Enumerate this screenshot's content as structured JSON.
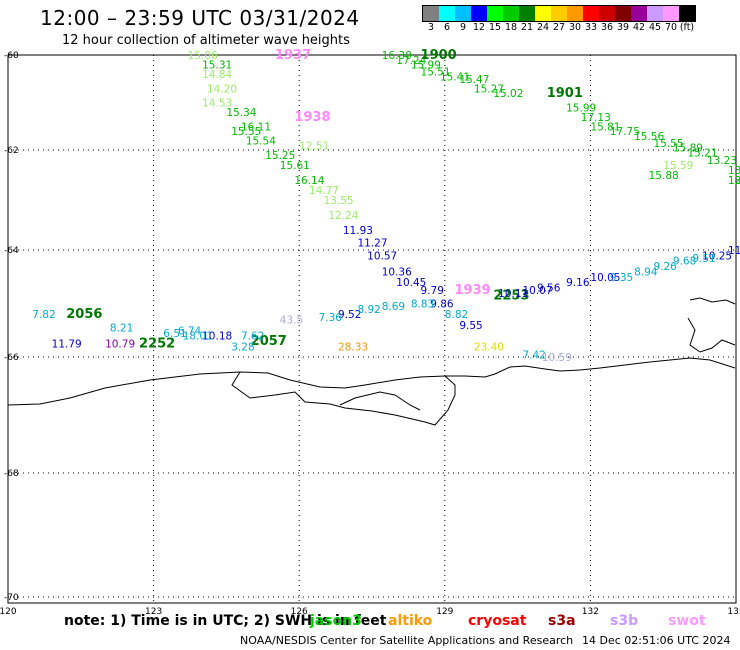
{
  "title": "12:00 – 23:59 UTC 03/31/2024",
  "subtitle": "12 hour collection of altimeter wave heights",
  "colorbar": {
    "colors": [
      "#808080",
      "#00ffff",
      "#00bfff",
      "#0000ff",
      "#00ff00",
      "#00cc00",
      "#008000",
      "#ffff00",
      "#ffcc00",
      "#ff9900",
      "#ff0000",
      "#cc0000",
      "#800000",
      "#990099",
      "#cc99ff",
      "#ff99ff",
      "#000000"
    ],
    "labels": [
      "3",
      "6",
      "9",
      "12",
      "15",
      "18",
      "21",
      "24",
      "27",
      "30",
      "33",
      "36",
      "39",
      "42",
      "45",
      "70",
      "(ft)"
    ]
  },
  "axes": {
    "lat_ticks": [
      "-60",
      "-62",
      "-64",
      "-66",
      "-68",
      "-70"
    ],
    "lon_ticks": [
      "120",
      "123",
      "126",
      "129",
      "132",
      "135"
    ]
  },
  "tracks": [
    {
      "color": "#99ee66",
      "labels": [
        [
          "15.06",
          123.7,
          -60.0
        ],
        [
          "14.84",
          124.0,
          -60.4
        ],
        [
          "14.20",
          124.1,
          -60.7
        ],
        [
          "14.53",
          124.0,
          -61.0
        ],
        [
          "12.24",
          126.6,
          -63.3
        ],
        [
          "13.55",
          126.5,
          -63.0
        ],
        [
          "14.77",
          126.2,
          -62.8
        ],
        [
          "12.51",
          126.0,
          -61.9
        ],
        [
          "15.59",
          133.5,
          -62.3
        ]
      ]
    },
    {
      "color": "#00bb00",
      "labels": [
        [
          "15.31",
          124.0,
          -60.2
        ],
        [
          "15.34",
          124.5,
          -61.2
        ],
        [
          "15.54",
          124.9,
          -61.8
        ],
        [
          "15.25",
          125.3,
          -62.1
        ],
        [
          "15.61",
          125.6,
          -62.3
        ],
        [
          "16.14",
          125.9,
          -62.6
        ],
        [
          "16.11",
          124.8,
          -61.5
        ],
        [
          "15.55",
          124.6,
          -61.6
        ],
        [
          "16.30",
          127.7,
          -60.0
        ],
        [
          "17.24",
          128.0,
          -60.1
        ],
        [
          "15.99",
          128.3,
          -60.2
        ],
        [
          "15.51",
          128.5,
          -60.35
        ],
        [
          "15.41",
          128.9,
          -60.45
        ],
        [
          "15.47",
          129.3,
          -60.5
        ],
        [
          "15.27",
          129.6,
          -60.7
        ],
        [
          "15.02",
          130.0,
          -60.8
        ],
        [
          "15.99",
          131.5,
          -61.1
        ],
        [
          "17.13",
          131.8,
          -61.3
        ],
        [
          "15.81",
          132.0,
          -61.5
        ],
        [
          "17.75",
          132.4,
          -61.6
        ],
        [
          "15.56",
          132.9,
          -61.7
        ],
        [
          "15.55",
          133.3,
          -61.85
        ],
        [
          "15.89",
          133.7,
          -61.95
        ],
        [
          "15.21",
          134.0,
          -62.05
        ],
        [
          "13.23",
          134.4,
          -62.2
        ],
        [
          "13.44",
          134.9,
          -62.4
        ],
        [
          "12.88",
          135.2,
          -62.6
        ],
        [
          "15.88",
          133.2,
          -62.5
        ],
        [
          "13.19",
          135.4,
          -62.6
        ]
      ]
    },
    {
      "color": "#007700",
      "labels": [
        [
          "1900",
          128.5,
          -60.0
        ],
        [
          "1901",
          131.1,
          -60.8
        ],
        [
          "2056",
          121.2,
          -65.2
        ],
        [
          "2252",
          122.7,
          -65.75
        ],
        [
          "2057",
          125.0,
          -65.7
        ],
        [
          "2253",
          130.0,
          -64.85
        ]
      ]
    },
    {
      "color": "#0000cc",
      "labels": [
        [
          "11.93",
          126.9,
          -63.6
        ],
        [
          "11.27",
          127.2,
          -63.85
        ],
        [
          "10.57",
          127.4,
          -64.1
        ],
        [
          "10.36",
          127.7,
          -64.4
        ],
        [
          "10.45",
          128.0,
          -64.6
        ],
        [
          "9.79",
          128.5,
          -64.75
        ],
        [
          "9.86",
          128.7,
          -65.0
        ],
        [
          "10.11",
          130.1,
          -64.8
        ],
        [
          "10.07",
          130.6,
          -64.75
        ],
        [
          "9.56",
          130.9,
          -64.7
        ],
        [
          "9.16",
          131.5,
          -64.6
        ],
        [
          "10.05",
          132.0,
          -64.5
        ],
        [
          "9.55",
          129.3,
          -65.4
        ],
        [
          "11.79",
          120.9,
          -65.75
        ],
        [
          "10.18",
          124.0,
          -65.6
        ],
        [
          "9.52",
          126.8,
          -65.2
        ],
        [
          "11.32",
          135.0,
          -64.0
        ],
        [
          "10.25",
          134.3,
          -64.1
        ]
      ]
    },
    {
      "color": "#00aacc",
      "labels": [
        [
          "7.82",
          120.5,
          -65.2
        ],
        [
          "6.51",
          123.2,
          -65.55
        ],
        [
          "6.74",
          123.5,
          -65.5
        ],
        [
          "7.36",
          126.4,
          -65.25
        ],
        [
          "8.92",
          127.2,
          -65.1
        ],
        [
          "8.69",
          127.7,
          -65.05
        ],
        [
          "8.83",
          128.3,
          -65.0
        ],
        [
          "8.82",
          129.0,
          -65.2
        ],
        [
          "7.42",
          130.6,
          -65.95
        ],
        [
          "8.21",
          122.1,
          -65.45
        ],
        [
          "9.35",
          132.4,
          -64.5
        ],
        [
          "8.94",
          132.9,
          -64.4
        ],
        [
          "9.26",
          133.3,
          -64.3
        ],
        [
          "9.68",
          133.7,
          -64.2
        ],
        [
          "9.51",
          134.1,
          -64.15
        ],
        [
          "7.62",
          124.8,
          -65.6
        ],
        [
          "3.28",
          124.6,
          -65.8
        ],
        [
          "18.01",
          123.6,
          -65.6
        ]
      ]
    },
    {
      "color": "#aaaadd",
      "labels": [
        [
          "43.5",
          125.6,
          -65.3
        ],
        [
          "10.59",
          131.0,
          -66.0
        ]
      ]
    },
    {
      "color": "#ff88ff",
      "labels": [
        [
          "1937",
          125.5,
          -60.0
        ],
        [
          "1938",
          125.9,
          -61.3
        ],
        [
          "1939",
          129.2,
          -64.75
        ]
      ]
    },
    {
      "color": "#8800aa",
      "labels": [
        [
          "10.79",
          122.0,
          -65.75
        ]
      ]
    },
    {
      "color": "#ee9900",
      "labels": [
        [
          "28.33",
          126.8,
          -65.8
        ]
      ]
    },
    {
      "color": "#dddd00",
      "labels": [
        [
          "23.40",
          129.6,
          -65.8
        ]
      ]
    },
    {
      "color": "#ff0000",
      "labels": []
    }
  ],
  "note": "note:  1) Time is in UTC; 2) SWH is in feet",
  "satellites": [
    {
      "name": "jason3",
      "color": "#00cc00"
    },
    {
      "name": "altiko",
      "color": "#ff9900"
    },
    {
      "name": "cryosat",
      "color": "#ff0000"
    },
    {
      "name": "s3a",
      "color": "#990000"
    },
    {
      "name": "s3b",
      "color": "#cc99ff"
    },
    {
      "name": "swot",
      "color": "#ff99ff"
    }
  ],
  "credit": "NOAA/NESDIS Center for Satellite Applications and Research",
  "timestamp": "14 Dec 02:51:06 UTC 2024"
}
